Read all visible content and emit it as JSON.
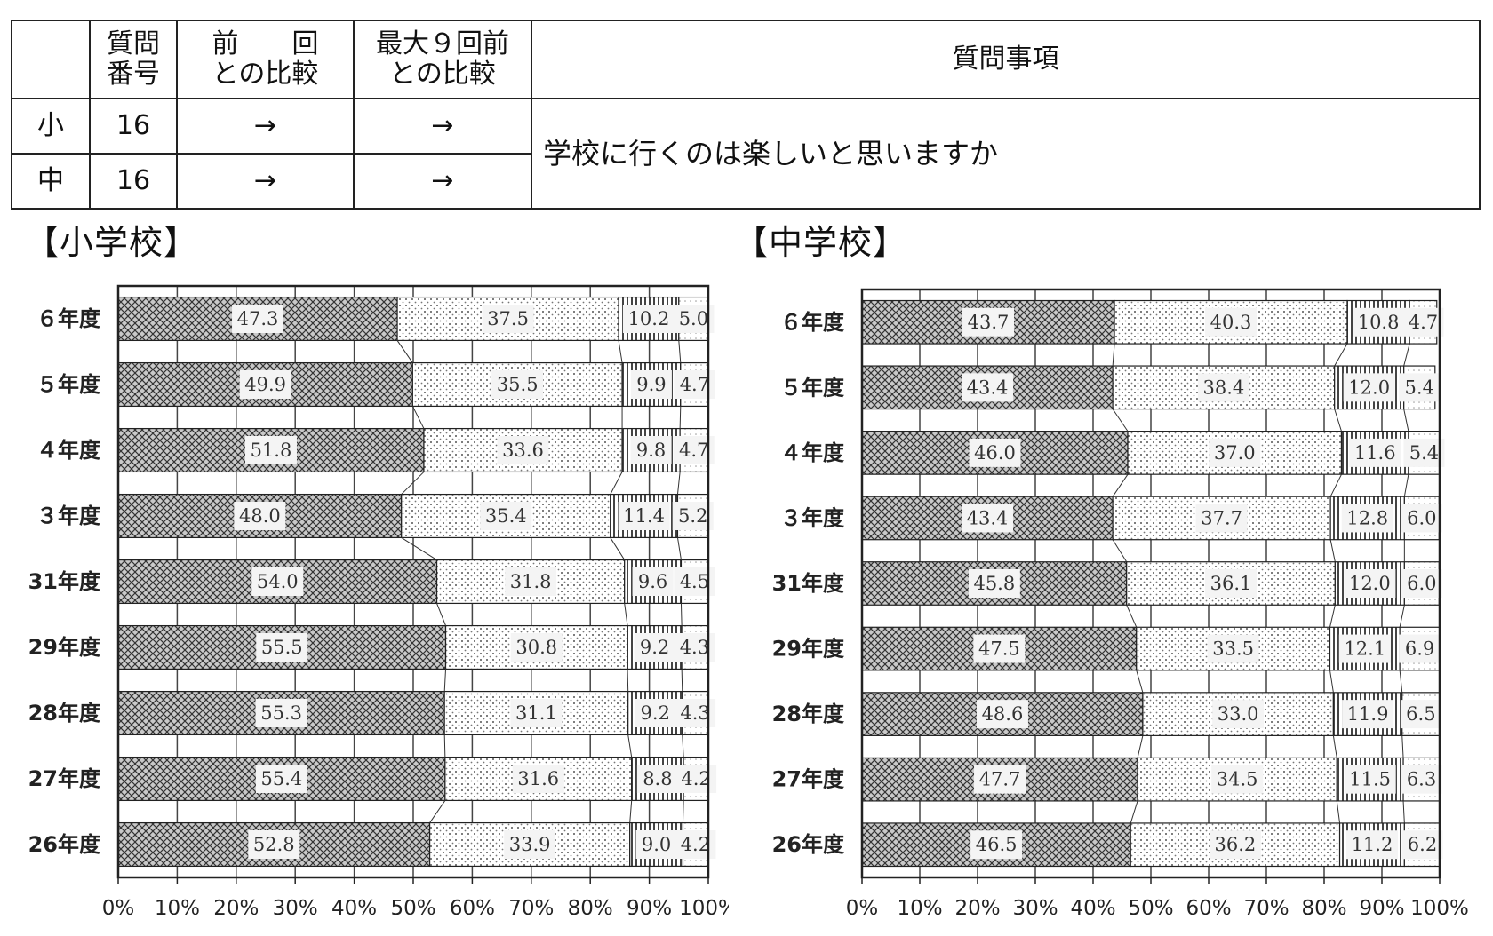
{
  "table": {
    "headers": [
      "",
      "質問\n番号",
      "前　　回\nとの比較",
      "最大９回前\nとの比較",
      "質問事項"
    ],
    "rows": [
      {
        "level": "小",
        "number": "16",
        "prev": "→",
        "max9": "→"
      },
      {
        "level": "中",
        "number": "16",
        "prev": "→",
        "max9": "→"
      }
    ],
    "question": "学校に行くのは楽しいと思いますか"
  },
  "chart_data": [
    {
      "type": "bar",
      "stacked": true,
      "orientation": "horizontal",
      "title": "【小学校】",
      "categories": [
        "６年度",
        "５年度",
        "４年度",
        "３年度",
        "31年度",
        "29年度",
        "28年度",
        "27年度",
        "26年度"
      ],
      "series": [
        {
          "values": [
            47.3,
            49.9,
            51.8,
            48.0,
            54.0,
            55.5,
            55.3,
            55.4,
            52.8
          ]
        },
        {
          "values": [
            37.5,
            35.5,
            33.6,
            35.4,
            31.8,
            30.8,
            31.1,
            31.6,
            33.9
          ]
        },
        {
          "values": [
            10.2,
            9.9,
            9.8,
            11.4,
            9.6,
            9.2,
            9.2,
            8.8,
            9.0
          ]
        },
        {
          "values": [
            5.0,
            4.7,
            4.7,
            5.2,
            4.5,
            4.3,
            4.3,
            4.2,
            4.2
          ]
        }
      ],
      "value_labels": [
        [
          "47.3",
          "37.5",
          "10.2",
          "5.0"
        ],
        [
          "49.9",
          "35.5",
          "9.9",
          "4.7"
        ],
        [
          "51.8",
          "33.6",
          "9.8",
          "4.7"
        ],
        [
          "48.0",
          "35.4",
          "11.4",
          "5.2"
        ],
        [
          "54.0",
          "31.8",
          "9.6",
          "4.5"
        ],
        [
          "55.5",
          "30.8",
          "9.2",
          "4.3"
        ],
        [
          "55.3",
          "31.1",
          "9.2",
          "4.3"
        ],
        [
          "55.4",
          "31.6",
          "8.8",
          "4.2"
        ],
        [
          "52.8",
          "33.9",
          "9.0",
          "4.2"
        ]
      ],
      "x_ticks": [
        "0%",
        "10%",
        "20%",
        "30%",
        "40%",
        "50%",
        "60%",
        "70%",
        "80%",
        "90%",
        "100%"
      ],
      "xlim": [
        0,
        100
      ],
      "grid": true,
      "legend": "none"
    },
    {
      "type": "bar",
      "stacked": true,
      "orientation": "horizontal",
      "title": "【中学校】",
      "categories": [
        "６年度",
        "５年度",
        "４年度",
        "３年度",
        "31年度",
        "29年度",
        "28年度",
        "27年度",
        "26年度"
      ],
      "series": [
        {
          "values": [
            43.7,
            43.4,
            46.0,
            43.4,
            45.8,
            47.5,
            48.6,
            47.7,
            46.5
          ]
        },
        {
          "values": [
            40.3,
            38.4,
            37.0,
            37.7,
            36.1,
            33.5,
            33.0,
            34.5,
            36.2
          ]
        },
        {
          "values": [
            10.8,
            12.0,
            11.6,
            12.8,
            12.0,
            12.1,
            11.9,
            11.5,
            11.2
          ]
        },
        {
          "values": [
            4.7,
            5.4,
            5.4,
            6.0,
            6.0,
            6.9,
            6.5,
            6.3,
            6.2
          ]
        }
      ],
      "value_labels": [
        [
          "43.7",
          "40.3",
          "10.8",
          "4.7"
        ],
        [
          "43.4",
          "38.4",
          "12.0",
          "5.4"
        ],
        [
          "46.0",
          "37.0",
          "11.6",
          "5.4"
        ],
        [
          "43.4",
          "37.7",
          "12.8",
          "6.0"
        ],
        [
          "45.8",
          "36.1",
          "12.0",
          "6.0"
        ],
        [
          "47.5",
          "33.5",
          "12.1",
          "6.9"
        ],
        [
          "48.6",
          "33.0",
          "11.9",
          "6.5"
        ],
        [
          "47.7",
          "34.5",
          "11.5",
          "6.3"
        ],
        [
          "46.5",
          "36.2",
          "11.2",
          "6.2"
        ]
      ],
      "x_ticks": [
        "0%",
        "10%",
        "20%",
        "30%",
        "40%",
        "50%",
        "60%",
        "70%",
        "80%",
        "90%",
        "100%"
      ],
      "xlim": [
        0,
        100
      ],
      "grid": true,
      "legend": "none"
    }
  ]
}
